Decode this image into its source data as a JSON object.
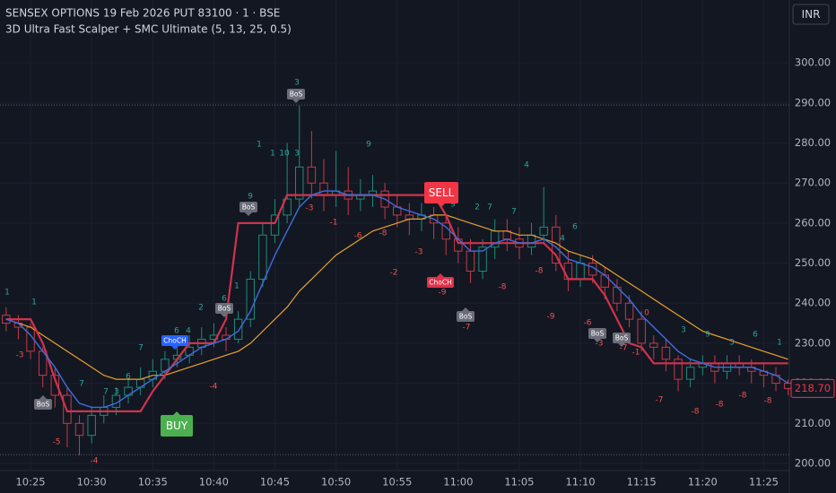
{
  "header": {
    "symbol": "SENSEX OPTIONS 19 Feb 2026 PUT 83100 · 1 · BSE",
    "indicator": "3D Ultra Fast Scalper + SMC Ultimate (5, 13, 25, 0.5)",
    "currency_button": "INR"
  },
  "chart_data": {
    "type": "candlestick",
    "ylim": [
      198.2,
      315.7
    ],
    "yticks": [
      {
        "value": 200,
        "label": "200.00"
      },
      {
        "value": 210,
        "label": "210.00"
      },
      {
        "value": 220,
        "label": "220.00"
      },
      {
        "value": 230,
        "label": "230.00"
      },
      {
        "value": 240,
        "label": "240.00"
      },
      {
        "value": 250,
        "label": "250.00"
      },
      {
        "value": 260,
        "label": "260.00"
      },
      {
        "value": 270,
        "label": "270.00"
      },
      {
        "value": 280,
        "label": "280.00"
      },
      {
        "value": 290,
        "label": "290.00"
      },
      {
        "value": 300,
        "label": "300.00"
      }
    ],
    "xlim": [
      -0.5,
      64.1
    ],
    "xticks": [
      {
        "value": 2,
        "label": "10:25"
      },
      {
        "value": 7,
        "label": "10:30"
      },
      {
        "value": 12,
        "label": "10:35"
      },
      {
        "value": 17,
        "label": "10:40"
      },
      {
        "value": 22,
        "label": "10:45"
      },
      {
        "value": 27,
        "label": "10:50"
      },
      {
        "value": 32,
        "label": "10:55"
      },
      {
        "value": 37,
        "label": "11:00"
      },
      {
        "value": 42,
        "label": "11:05"
      },
      {
        "value": 47,
        "label": "11:10"
      },
      {
        "value": 52,
        "label": "11:15"
      },
      {
        "value": 57,
        "label": "11:20"
      },
      {
        "value": 62,
        "label": "11:25"
      }
    ],
    "grid": true,
    "up_color": "#1e8c7a",
    "down_color": "#c43a4a",
    "open": [
      237,
      235,
      234,
      228,
      222,
      217,
      210,
      207,
      212,
      214,
      217,
      219,
      221,
      223,
      226,
      227,
      229,
      231,
      232,
      231,
      236,
      246,
      257,
      262,
      266,
      274,
      270,
      267,
      268,
      266,
      267,
      268,
      264,
      262,
      261,
      262,
      260,
      256,
      253,
      248,
      254,
      258,
      256,
      254,
      257,
      259,
      250,
      246,
      250,
      247,
      244,
      240,
      236,
      230,
      229,
      226,
      221,
      224,
      225,
      223,
      225,
      224,
      223,
      222,
      220
    ],
    "high": [
      239,
      237,
      235,
      229,
      224,
      219,
      212,
      214,
      217,
      219,
      221,
      224,
      226,
      228,
      230,
      232,
      234,
      235,
      234,
      238,
      248,
      260,
      266,
      280,
      289.3,
      283,
      276,
      278,
      274,
      271,
      272,
      270,
      267,
      265,
      265,
      264,
      262,
      259,
      256,
      256,
      261,
      261,
      259,
      260,
      269,
      262,
      253,
      252,
      252,
      249,
      246,
      242,
      238,
      232,
      231,
      227,
      226,
      227,
      227,
      227,
      227,
      226,
      225,
      224,
      221
    ],
    "low": [
      233,
      231,
      226,
      219,
      214,
      204,
      202,
      205,
      210,
      212,
      215,
      217,
      219,
      221,
      224,
      225,
      227,
      229,
      228,
      230,
      234,
      244,
      255,
      260,
      264,
      266,
      263,
      264,
      262,
      263,
      264,
      261,
      259,
      257,
      258,
      256,
      252,
      250,
      245,
      246,
      251,
      253,
      251,
      252,
      255,
      248,
      243,
      244,
      245,
      241,
      238,
      234,
      228,
      226,
      223,
      218,
      219,
      222,
      220,
      221,
      222,
      220,
      219,
      218,
      217
    ],
    "close": [
      235,
      234,
      228,
      222,
      217,
      210,
      207,
      212,
      214,
      217,
      219,
      221,
      223,
      226,
      227,
      229,
      231,
      232,
      231,
      236,
      246,
      257,
      262,
      266,
      274,
      270,
      267,
      268,
      266,
      267,
      268,
      264,
      262,
      261,
      262,
      260,
      256,
      253,
      248,
      254,
      258,
      256,
      254,
      257,
      259,
      250,
      246,
      250,
      247,
      244,
      240,
      236,
      230,
      229,
      226,
      221,
      224,
      225,
      223,
      225,
      224,
      223,
      222,
      220,
      218.7
    ],
    "series": [
      {
        "color": "#e8a12f",
        "width": 1.2,
        "values": [
          236,
          235,
          234,
          232,
          230,
          228,
          226,
          224,
          222,
          221,
          221,
          221,
          222,
          222,
          223,
          224,
          225,
          226,
          227,
          228,
          230,
          233,
          236,
          239,
          243,
          246,
          249,
          252,
          254,
          256,
          258,
          259,
          260,
          261,
          261,
          262,
          262,
          261,
          260,
          259,
          258,
          258,
          257,
          257,
          256,
          255,
          253,
          252,
          251,
          249,
          247,
          245,
          243,
          241,
          239,
          237,
          235,
          233,
          232,
          231,
          230,
          229,
          228,
          227,
          226
        ]
      },
      {
        "color": "#d0334d",
        "width": 2.2,
        "values": [
          236,
          236,
          236,
          230,
          221,
          213,
          213,
          213,
          213,
          213,
          213,
          213,
          218,
          222,
          226,
          230,
          230,
          230,
          236,
          260,
          260,
          260,
          260,
          267,
          267,
          267,
          267,
          267,
          267,
          267,
          267,
          267,
          267,
          267,
          267,
          267,
          262,
          255,
          255,
          255,
          255,
          255,
          255,
          255,
          255,
          252,
          246,
          246,
          246,
          242,
          236,
          230,
          229,
          225,
          225,
          225,
          225,
          225,
          225,
          225,
          225,
          225,
          225,
          225,
          225
        ]
      },
      {
        "color": "#3d6fe0",
        "width": 1.4,
        "values": [
          236,
          235,
          232,
          228,
          224,
          219,
          215,
          214,
          214,
          215,
          217,
          219,
          221,
          223,
          225,
          227,
          229,
          230,
          231,
          233,
          238,
          245,
          252,
          258,
          264,
          267,
          268,
          268,
          267,
          267,
          267,
          266,
          264,
          263,
          262,
          261,
          259,
          256,
          253,
          253,
          255,
          256,
          255,
          255,
          256,
          254,
          251,
          250,
          249,
          247,
          244,
          241,
          237,
          234,
          231,
          228,
          226,
          225,
          224,
          224,
          224,
          224,
          223,
          222,
          220
        ]
      }
    ],
    "levels": [
      289.5,
      202.2
    ],
    "last_price": {
      "value": 218.7,
      "label": "218.70"
    },
    "up_counts": [
      1,
      1,
      7,
      7,
      3,
      6,
      7,
      4,
      2,
      6,
      1,
      9,
      1,
      1,
      10,
      3,
      3,
      9,
      9,
      2,
      7,
      7,
      4,
      4,
      6,
      3,
      9,
      3,
      6,
      1,
      6
    ],
    "down_counts": [
      -3,
      -5,
      -4,
      -4,
      -3,
      -1,
      -6,
      -8,
      -2,
      -3,
      -9,
      -7,
      -8,
      -8,
      -9,
      -6,
      -3,
      -7,
      -1,
      0,
      -7,
      -8,
      -8,
      -8,
      -8
    ],
    "bos_labels": [
      "BoS",
      "BoS",
      "BoS",
      "BoS",
      "BoS",
      "BoS",
      "BoS"
    ],
    "choch_bull": "ChoCH",
    "choch_bear": "ChoCH",
    "buy": "BUY",
    "sell": "SELL",
    "up_text_color": "#26a69a",
    "down_text_color": "#ef5350"
  }
}
